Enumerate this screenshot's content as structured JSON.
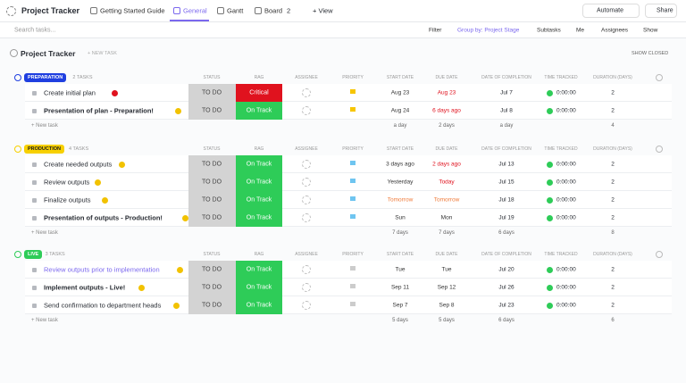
{
  "topbar": {
    "title": "Project Tracker",
    "tabs": [
      "Getting Started Guide",
      "General",
      "Gantt",
      "Board"
    ],
    "board_count": "2",
    "add_view": "+ View",
    "automate": "Automate",
    "share": "Share"
  },
  "toolbar": {
    "search": "Search tasks...",
    "filter": "Filter",
    "group_by": "Group by: Project Stage",
    "subtasks": "Subtasks",
    "me": "Me",
    "assignees": "Assignees",
    "show": "Show"
  },
  "list": {
    "title": "Project Tracker",
    "new_task": "+ NEW TASK",
    "show_closed": "SHOW CLOSED"
  },
  "columns": [
    "STATUS",
    "RAG",
    "ASSIGNEE",
    "PRIORITY",
    "START DATE",
    "DUE DATE",
    "DATE OF COMPLETION",
    "TIME TRACKED",
    "DURATION (DAYS)"
  ],
  "groups": [
    {
      "name": "PREPARATION",
      "color": "#1f3fe0",
      "text_color": "#ffffff",
      "count": "2 TASKS",
      "rows": [
        {
          "name": "Create initial plan",
          "bold": false,
          "icon_color": "#e0121e",
          "status": "TO DO",
          "rag": "Critical",
          "rag_color": "#e0121e",
          "start": "Aug 23",
          "due": "Aug 23",
          "due_color": "#e0121e",
          "completion": "Jul 7",
          "time": "0:00:00",
          "duration": "2"
        },
        {
          "name": "Presentation of plan - Preparation!",
          "bold": true,
          "icon_color": "#f2c200",
          "status": "TO DO",
          "rag": "On Track",
          "rag_color": "#2ecc58",
          "start": "Aug 24",
          "due": "6 days ago",
          "due_color": "#e0121e",
          "completion": "Jul 8",
          "time": "0:00:00",
          "duration": "2"
        }
      ],
      "footer": {
        "new_task": "+ New task",
        "start": "a day",
        "due": "2 days",
        "completion": "a day",
        "duration": "4"
      }
    },
    {
      "name": "PRODUCTION",
      "color": "#f7d000",
      "text_color": "#1a1a1a",
      "count": "4 TASKS",
      "rows": [
        {
          "name": "Create needed outputs",
          "bold": false,
          "icon_color": "#f2c200",
          "status": "TO DO",
          "rag": "On Track",
          "rag_color": "#2ecc58",
          "start": "3 days ago",
          "due": "2 days ago",
          "due_color": "#e0121e",
          "completion": "Jul 13",
          "time": "0:00:00",
          "duration": "2"
        },
        {
          "name": "Review outputs",
          "bold": false,
          "icon_color": "#f2c200",
          "status": "TO DO",
          "rag": "On Track",
          "rag_color": "#2ecc58",
          "start": "Yesterday",
          "due": "Today",
          "due_color": "#e0121e",
          "completion": "Jul 15",
          "time": "0:00:00",
          "duration": "2"
        },
        {
          "name": "Finalize outputs",
          "bold": false,
          "icon_color": "#f2c200",
          "status": "TO DO",
          "rag": "On Track",
          "rag_color": "#2ecc58",
          "start": "Tomorrow",
          "start_color": "#f07b3a",
          "due": "Tomorrow",
          "due_color": "#f07b3a",
          "completion": "Jul 18",
          "time": "0:00:00",
          "duration": "2"
        },
        {
          "name": "Presentation of outputs - Production!",
          "bold": true,
          "icon_color": "#f2c200",
          "status": "TO DO",
          "rag": "On Track",
          "rag_color": "#2ecc58",
          "start": "Sun",
          "due": "Mon",
          "completion": "Jul 19",
          "time": "0:00:00",
          "duration": "2"
        }
      ],
      "footer": {
        "new_task": "+ New task",
        "start": "7 days",
        "due": "7 days",
        "completion": "6 days",
        "duration": "8"
      }
    },
    {
      "name": "LIVE",
      "color": "#2ecc58",
      "text_color": "#ffffff",
      "count": "3 TASKS",
      "rows": [
        {
          "name": "Review outputs prior to implementation",
          "bold": false,
          "name_color": "#7b68ee",
          "icon_color": "#f2c200",
          "status": "TO DO",
          "rag": "On Track",
          "rag_color": "#2ecc58",
          "start": "Tue",
          "due": "Tue",
          "completion": "Jul 20",
          "time": "0:00:00",
          "duration": "2"
        },
        {
          "name": "Implement outputs - Live!",
          "bold": true,
          "icon_color": "#f2c200",
          "status": "TO DO",
          "rag": "On Track",
          "rag_color": "#2ecc58",
          "start": "Sep 11",
          "due": "Sep 12",
          "completion": "Jul 26",
          "time": "0:00:00",
          "duration": "2"
        },
        {
          "name": "Send confirmation to department heads",
          "bold": false,
          "icon_color": "#f2c200",
          "status": "TO DO",
          "rag": "On Track",
          "rag_color": "#2ecc58",
          "start": "Sep 7",
          "due": "Sep 8",
          "completion": "Jul 23",
          "time": "0:00:00",
          "duration": "2"
        }
      ],
      "footer": {
        "new_task": "+ New task",
        "start": "5 days",
        "due": "5 days",
        "completion": "6 days",
        "duration": "6"
      }
    }
  ]
}
